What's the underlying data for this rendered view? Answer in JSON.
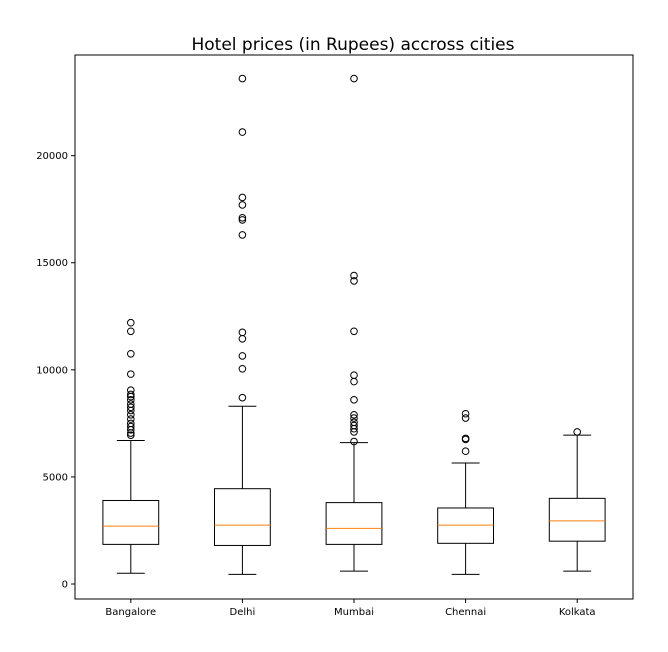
{
  "chart_data": {
    "type": "boxplot",
    "title": "Hotel prices (in Rupees) accross cities",
    "xlabel": "",
    "ylabel": "",
    "ylim": [
      -700,
      24700
    ],
    "yticks": [
      0,
      5000,
      10000,
      15000,
      20000
    ],
    "ytick_labels": [
      "0",
      "5000",
      "10000",
      "15000",
      "20000"
    ],
    "grid": false,
    "colors": {
      "box": "#000000",
      "median": "#ff7f0e",
      "outlier": "#000000"
    },
    "categories": [
      "Bangalore",
      "Delhi",
      "Mumbai",
      "Chennai",
      "Kolkata"
    ],
    "series": [
      {
        "category": "Bangalore",
        "whisker_low": 500,
        "q1": 1850,
        "median": 2700,
        "q3": 3900,
        "whisker_high": 6700,
        "outliers": [
          6950,
          7050,
          7200,
          7350,
          7500,
          7700,
          7900,
          8100,
          8250,
          8400,
          8600,
          8750,
          8850,
          9050,
          9800,
          10750,
          11800,
          12200
        ]
      },
      {
        "category": "Delhi",
        "whisker_low": 450,
        "q1": 1800,
        "median": 2750,
        "q3": 4450,
        "whisker_high": 8300,
        "outliers": [
          8700,
          10050,
          10650,
          11450,
          11750,
          16300,
          17000,
          17100,
          17700,
          18050,
          21100,
          23600
        ]
      },
      {
        "category": "Mumbai",
        "whisker_low": 600,
        "q1": 1850,
        "median": 2600,
        "q3": 3800,
        "whisker_high": 6600,
        "outliers": [
          6650,
          7100,
          7250,
          7400,
          7550,
          7750,
          7900,
          8600,
          9450,
          9750,
          11800,
          14150,
          14400,
          23600
        ]
      },
      {
        "category": "Chennai",
        "whisker_low": 450,
        "q1": 1900,
        "median": 2750,
        "q3": 3550,
        "whisker_high": 5650,
        "outliers": [
          6200,
          6750,
          6800,
          7750,
          7950
        ]
      },
      {
        "category": "Kolkata",
        "whisker_low": 600,
        "q1": 2000,
        "median": 2950,
        "q3": 4000,
        "whisker_high": 6950,
        "outliers": [
          7100
        ]
      }
    ]
  }
}
